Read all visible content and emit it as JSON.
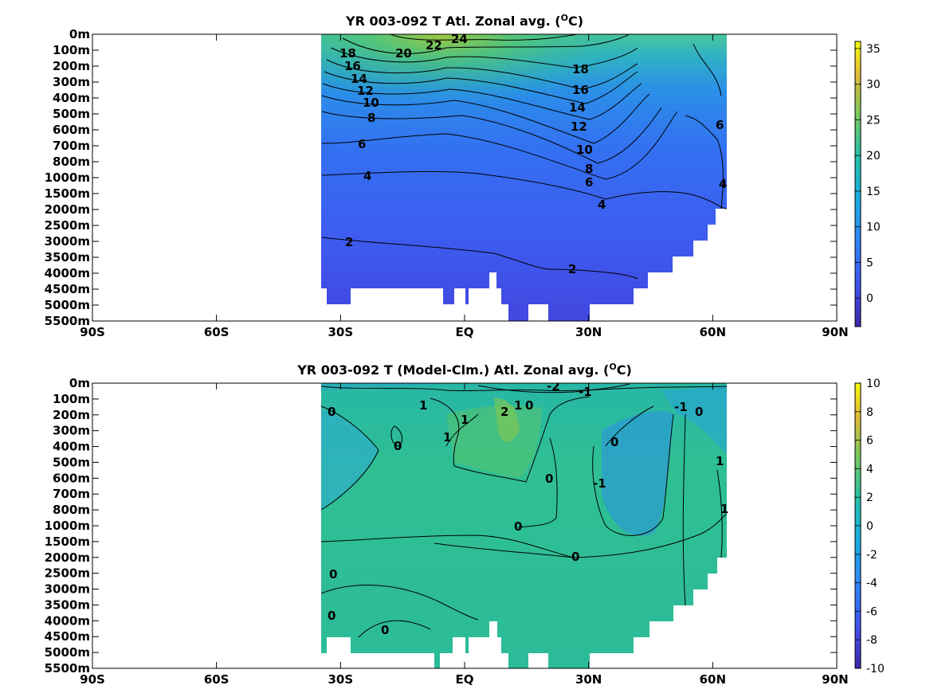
{
  "chart_data": [
    {
      "type": "heatmap",
      "subtype": "contour",
      "title": "YR 003-092 T Atl. Zonal avg. (",
      "title_unit": "O",
      "title_suffix": "C)",
      "xticks": [
        "90S",
        "60S",
        "30S",
        "EQ",
        "30N",
        "60N",
        "90N"
      ],
      "xlim": [
        -90,
        90
      ],
      "yticks": [
        "0m",
        "100m",
        "200m",
        "300m",
        "400m",
        "500m",
        "600m",
        "700m",
        "800m",
        "1000m",
        "1500m",
        "2000m",
        "2500m",
        "3000m",
        "3500m",
        "4000m",
        "4500m",
        "5000m",
        "5500m"
      ],
      "data_lat_range": [
        -35,
        65
      ],
      "colorbar": {
        "ticks": [
          "35",
          "30",
          "25",
          "20",
          "15",
          "10",
          "5",
          "0"
        ],
        "range": [
          -4,
          36
        ],
        "colormap": "parula"
      },
      "contour_labels": [
        "24",
        "22",
        "20",
        "18",
        "16",
        "14",
        "12",
        "10",
        "8",
        "6",
        "4",
        "18",
        "16",
        "14",
        "12",
        "10",
        "8",
        "6",
        "4",
        "2",
        "2",
        "6",
        "4"
      ]
    },
    {
      "type": "heatmap",
      "subtype": "contour",
      "title": "YR 003-092 T (Model-Clm.) Atl. Zonal avg. (",
      "title_unit": "O",
      "title_suffix": "C)",
      "xticks": [
        "90S",
        "60S",
        "30S",
        "EQ",
        "30N",
        "60N",
        "90N"
      ],
      "xlim": [
        -90,
        90
      ],
      "yticks": [
        "0m",
        "100m",
        "200m",
        "300m",
        "400m",
        "500m",
        "600m",
        "700m",
        "800m",
        "1000m",
        "1500m",
        "2000m",
        "2500m",
        "3000m",
        "3500m",
        "4000m",
        "4500m",
        "5000m",
        "5500m"
      ],
      "data_lat_range": [
        -35,
        65
      ],
      "colorbar": {
        "ticks": [
          "10",
          "8",
          "6",
          "4",
          "2",
          "0",
          "-2",
          "-4",
          "-6",
          "-8",
          "-10"
        ],
        "range": [
          -10,
          10
        ],
        "colormap": "parula"
      },
      "contour_labels": [
        "-2",
        "-1",
        "0",
        "1",
        "1",
        "2",
        "1",
        "0",
        "1",
        "0",
        "0",
        "0",
        "-1",
        "-1",
        "0",
        "1",
        "1",
        "0",
        "0",
        "0",
        "0",
        "0"
      ]
    }
  ]
}
